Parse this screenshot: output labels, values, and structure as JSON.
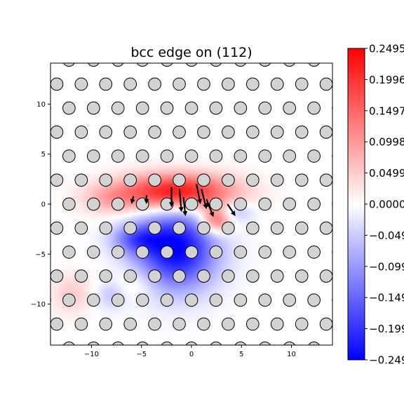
{
  "chart_data": {
    "type": "heatmap",
    "title": "bcc edge on (112)",
    "xlabel": "",
    "ylabel": "",
    "xlim": [
      -14.1,
      14.1
    ],
    "ylim": [
      -14.1,
      14.1
    ],
    "x_ticks": [
      -10,
      -5,
      0,
      5,
      10
    ],
    "x_tick_labels": [
      "−10",
      "−5",
      "0",
      "5",
      "10"
    ],
    "y_ticks": [
      -10,
      -5,
      0,
      5,
      10
    ],
    "y_tick_labels": [
      "−10",
      "−5",
      "0",
      "5",
      "10"
    ],
    "colormap": "bwr",
    "colorbar": {
      "min": -0.2495,
      "max": 0.2495,
      "ticks": [
        0.2495,
        0.1996,
        0.1497,
        0.0998,
        0.0499,
        0.0,
        -0.0499,
        -0.0998,
        -0.1497,
        -0.1996,
        -0.2495
      ],
      "tick_labels": [
        "0.2495",
        "0.1996",
        "0.1497",
        "0.0998",
        "0.0499",
        "0.0000",
        "−0.0499",
        "−0.0998",
        "−0.1497",
        "−0.1996",
        "−0.2495"
      ]
    },
    "field_features": [
      {
        "sign": "positive",
        "cx": -1.5,
        "cy": 1.2,
        "rx": 5.5,
        "ry": 1.8,
        "amplitude": 0.25
      },
      {
        "sign": "positive",
        "cx": 2.5,
        "cy": -1.5,
        "rx": 1.6,
        "ry": 1.4,
        "amplitude": 0.18
      },
      {
        "sign": "positive",
        "cx": -8.0,
        "cy": 0.5,
        "rx": 3.0,
        "ry": 1.5,
        "amplitude": 0.06
      },
      {
        "sign": "positive",
        "cx": -12.0,
        "cy": -9.0,
        "rx": 2.0,
        "ry": 2.0,
        "amplitude": 0.05
      },
      {
        "sign": "positive",
        "cx": -6.0,
        "cy": -8.0,
        "rx": 2.5,
        "ry": 1.5,
        "amplitude": 0.04
      },
      {
        "sign": "negative",
        "cx": -1.5,
        "cy": -4.5,
        "rx": 4.0,
        "ry": 4.0,
        "amplitude": -0.25
      },
      {
        "sign": "negative",
        "cx": -5.5,
        "cy": -3.5,
        "rx": 2.5,
        "ry": 1.5,
        "amplitude": -0.12
      },
      {
        "sign": "negative",
        "cx": 4.0,
        "cy": -0.8,
        "rx": 2.0,
        "ry": 1.0,
        "amplitude": -0.08
      },
      {
        "sign": "negative",
        "cx": -8.0,
        "cy": -9.0,
        "rx": 1.5,
        "ry": 1.5,
        "amplitude": -0.06
      }
    ],
    "atoms": {
      "marker": "open circle",
      "lattice_a1": [
        2.45,
        0.0
      ],
      "lattice_a2": [
        1.225,
        2.4
      ],
      "fill_color": "#d3d3d3",
      "edge_color": "#000000"
    },
    "displacement_arrows": [
      {
        "x": -2.0,
        "y": 1.7,
        "dx": 0.0,
        "dy": -2.0
      },
      {
        "x": -1.2,
        "y": 1.5,
        "dx": 0.2,
        "dy": -2.3
      },
      {
        "x": -0.8,
        "y": 0.7,
        "dx": 0.2,
        "dy": -1.9
      },
      {
        "x": 0.5,
        "y": 2.0,
        "dx": 0.4,
        "dy": -2.0
      },
      {
        "x": 1.0,
        "y": 1.5,
        "dx": 0.5,
        "dy": -2.0
      },
      {
        "x": 1.5,
        "y": 0.5,
        "dx": 0.7,
        "dy": -1.8
      },
      {
        "x": 3.6,
        "y": 0.0,
        "dx": 0.8,
        "dy": -1.2
      },
      {
        "x": -4.5,
        "y": 0.9,
        "dx": 0.0,
        "dy": -0.9
      },
      {
        "x": -5.8,
        "y": 0.8,
        "dx": -0.2,
        "dy": -0.8
      },
      {
        "x": 1.8,
        "y": 0.0,
        "dx": -0.6,
        "dy": -0.2
      }
    ]
  }
}
